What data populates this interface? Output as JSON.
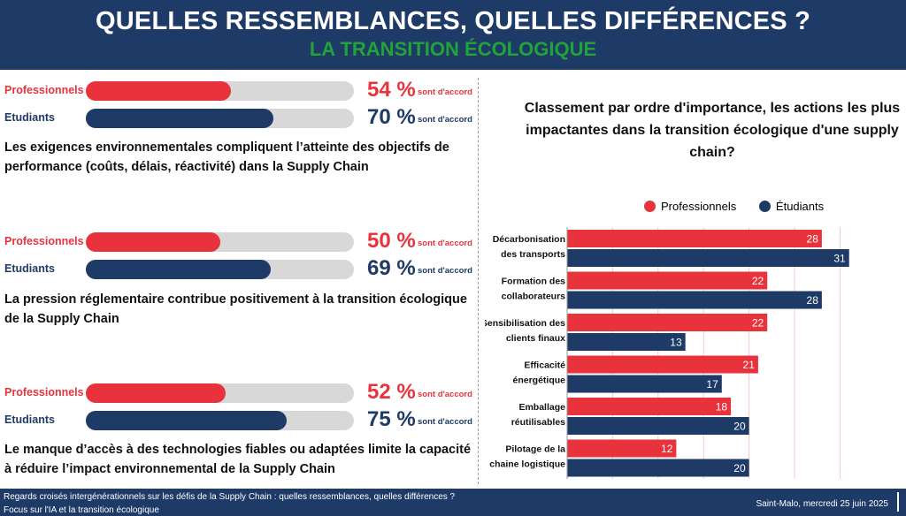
{
  "header": {
    "title": "QUELLES RESSEMBLANCES, QUELLES DIFFÉRENCES ?",
    "subtitle": "LA TRANSITION ÉCOLOGIQUE"
  },
  "colors": {
    "professionnels": "#e8333d",
    "etudiants": "#1e3a66",
    "track": "#d8d8d8",
    "subtitle": "#22a33a"
  },
  "survey": [
    {
      "pro": {
        "label": "Professionnels",
        "pct_text": "54 %",
        "suffix": "sont d'accord",
        "value": 54
      },
      "stu": {
        "label": "Etudiants",
        "pct_text": "70 %",
        "suffix": "sont d'accord",
        "value": 70
      },
      "statement": "Les exigences environnementales compliquent l’atteinte des objectifs de performance (coûts, délais, réactivité) dans la Supply Chain"
    },
    {
      "pro": {
        "label": "Professionnels",
        "pct_text": "50 %",
        "suffix": "sont d'accord",
        "value": 50
      },
      "stu": {
        "label": "Etudiants",
        "pct_text": "69 %",
        "suffix": "sont d'accord",
        "value": 69
      },
      "statement": "La pression réglementaire contribue positivement à la transition écologique de la Supply Chain"
    },
    {
      "pro": {
        "label": "Professionnels",
        "pct_text": "52 %",
        "suffix": "sont d'accord",
        "value": 52
      },
      "stu": {
        "label": "Etudiants",
        "pct_text": "75 %",
        "suffix": "sont d'accord",
        "value": 75
      },
      "statement": "Le manque d’accès à des technologies fiables ou adaptées limite la capacité à réduire l’impact environnemental de la Supply Chain"
    }
  ],
  "chart_data": {
    "type": "bar",
    "orientation": "horizontal",
    "title": "Classement par ordre d'importance, les actions les plus impactantes dans la transition écologique d'une supply chain?",
    "legend_position": "top",
    "categories": [
      [
        "Décarbonisation",
        "des transports"
      ],
      [
        "Formation des",
        "collaborateurs"
      ],
      [
        "Sensibilisation des",
        "clients finaux"
      ],
      [
        "Efficacité",
        "énergétique"
      ],
      [
        "Emballage",
        "réutilisables"
      ],
      [
        "Pilotage de la",
        "chaine logistique"
      ]
    ],
    "series": [
      {
        "name": "Professionnels",
        "color": "#e8333d",
        "values": [
          28,
          22,
          22,
          21,
          18,
          12
        ]
      },
      {
        "name": "Étudiants",
        "color": "#1e3a66",
        "values": [
          31,
          28,
          13,
          17,
          20,
          20
        ]
      }
    ],
    "xlim": [
      0,
      32
    ],
    "grid": true
  },
  "footer": {
    "line1": "Regards croisés intergénérationnels sur les défis de la Supply Chain : quelles ressemblances, quelles différences ?",
    "line2": "Focus sur l'IA et la transition écologique",
    "date": "Saint-Malo, mercredi 25 juin 2025"
  }
}
